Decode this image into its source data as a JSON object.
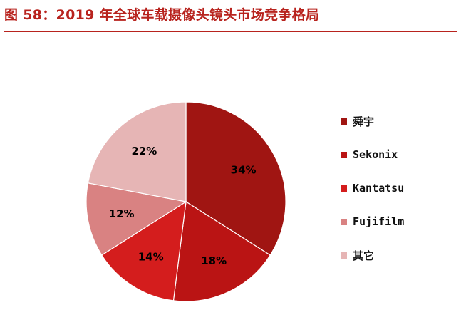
{
  "figure": {
    "title": "图 58：2019 年全球车载摄像头镜头市场竞争格局"
  },
  "colors": {
    "title": "#b8231e",
    "rule": "#b8231e"
  },
  "chart_data": {
    "type": "pie",
    "unit": "%",
    "start_angle_deg": 0,
    "direction": "clockwise",
    "legend_position": "right",
    "slices": [
      {
        "name": "舜宇",
        "value": 34,
        "label": "34%",
        "color": "#a01512"
      },
      {
        "name": "Sekonix",
        "value": 18,
        "label": "18%",
        "color": "#ba1414"
      },
      {
        "name": "Kantatsu",
        "value": 14,
        "label": "14%",
        "color": "#d41d1d"
      },
      {
        "name": "Fujifilm",
        "value": 12,
        "label": "12%",
        "color": "#d98282"
      },
      {
        "name": "其它",
        "value": 22,
        "label": "22%",
        "color": "#e6b5b5"
      }
    ]
  }
}
